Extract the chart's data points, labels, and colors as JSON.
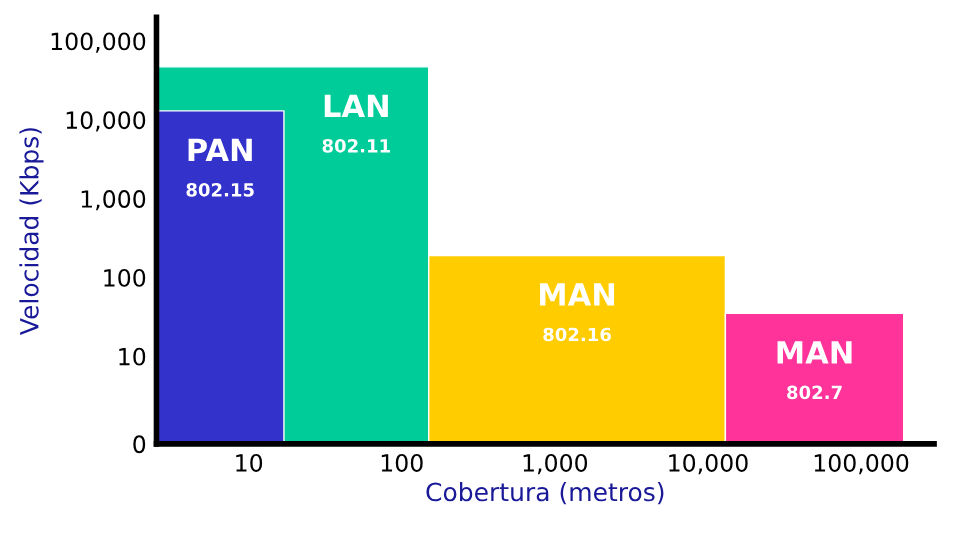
{
  "chart_data": {
    "type": "area",
    "xlabel": "Cobertura (metros)",
    "ylabel": "Velocidad (Kbps)",
    "log": "xy",
    "xlim": [
      2.5,
      300000
    ],
    "xticks": [
      10,
      100,
      {
        "value": 1000,
        "label": "1,000"
      },
      {
        "value": 10000,
        "label": "10,000"
      },
      {
        "value": 100000,
        "label": "100,000"
      }
    ],
    "ylim": [
      0,
      200000
    ],
    "yticks": [
      0,
      10,
      100,
      {
        "value": 1000,
        "label": "1,000"
      },
      {
        "value": 10000,
        "label": "10,000"
      },
      {
        "value": 100000,
        "label": "100,000"
      }
    ],
    "grid": false,
    "legend": false,
    "series": [
      {
        "name": "LAN",
        "color": "#00cc99",
        "x": [
          2.5,
          150
        ],
        "values": [
          47000,
          47000
        ]
      },
      {
        "name": "PAN",
        "color": "#3333cc",
        "x": [
          2.5,
          17
        ],
        "values": [
          13000,
          13000
        ]
      },
      {
        "name": "MAN",
        "color": "#ffcc00",
        "x": [
          150,
          13000
        ],
        "values": [
          190,
          190
        ]
      },
      {
        "name": "MAN",
        "color": "#ff3399",
        "x": [
          13000,
          190000
        ],
        "values": [
          35,
          35
        ]
      }
    ],
    "annotations": [
      "802.11",
      "802.15",
      "802.16",
      "802.7"
    ]
  }
}
